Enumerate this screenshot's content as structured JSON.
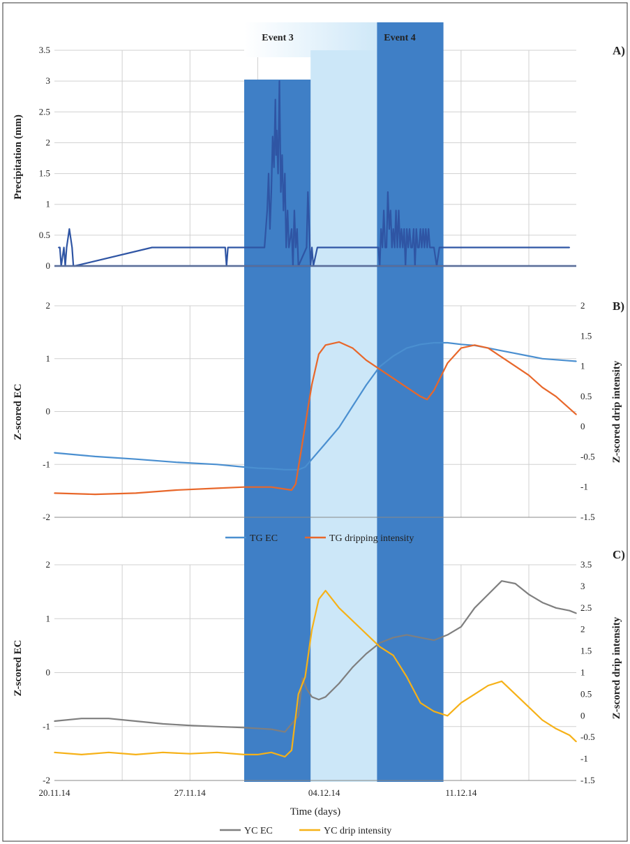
{
  "chart_data": [
    {
      "panel_label": "A)",
      "type": "bar",
      "xlabel": "",
      "ylabel": "Precipitation (mm)",
      "ylim": [
        0,
        3.5
      ],
      "yticks": [
        "0",
        "0.5",
        "1",
        "1.5",
        "2",
        "2.5",
        "3",
        "3.5"
      ],
      "grid": true,
      "events": [
        "Event 3",
        "Event 4"
      ],
      "series": [
        {
          "color": "#2f55a4",
          "x_days": [
            0.3,
            0.4,
            0.5,
            0.7,
            0.8,
            0.9,
            1.1,
            1.3,
            1.4,
            1.5,
            7.2,
            7.3,
            7.4,
            7.5,
            12.6,
            12.7,
            12.8,
            12.9,
            14.6,
            15.5,
            15.7,
            15.8,
            15.9,
            16.0,
            16.1,
            16.2,
            16.3,
            16.35,
            16.4,
            16.5,
            16.6,
            16.7,
            16.8,
            16.9,
            17.0,
            17.1,
            17.2,
            17.3,
            17.5,
            17.6,
            17.7,
            17.8,
            17.9,
            18.0,
            18.6,
            18.7,
            18.8,
            18.9,
            19.0,
            19.1,
            19.4,
            23.9,
            24.0,
            24.1,
            24.2,
            24.3,
            24.4,
            24.5,
            24.6,
            24.7,
            24.8,
            24.9,
            25.0,
            25.1,
            25.2,
            25.3,
            25.4,
            25.5,
            25.6,
            25.7,
            25.8,
            25.9,
            26.0,
            26.1,
            26.2,
            26.3,
            26.4,
            26.5,
            26.6,
            26.7,
            26.8,
            26.9,
            27.0,
            27.1,
            27.2,
            27.3,
            27.4,
            27.5,
            27.6,
            27.7,
            27.8,
            28.0,
            28.2,
            28.4,
            38.0
          ],
          "values": [
            0.3,
            0.3,
            0.0,
            0.3,
            0.0,
            0.3,
            0.6,
            0.3,
            0.0,
            0.0,
            0.3,
            0.3,
            0.3,
            0.3,
            0.3,
            0.0,
            0.3,
            0.3,
            0.3,
            0.3,
            0.9,
            1.5,
            0.6,
            1.2,
            2.1,
            1.6,
            2.7,
            1.8,
            2.2,
            1.5,
            3.0,
            1.2,
            1.8,
            0.9,
            1.5,
            0.3,
            0.9,
            0.3,
            0.6,
            0.0,
            0.9,
            0.3,
            0.6,
            0.0,
            0.3,
            1.2,
            0.6,
            0.0,
            0.3,
            0.0,
            0.3,
            0.3,
            0.0,
            0.6,
            0.3,
            0.9,
            0.3,
            0.3,
            1.2,
            0.6,
            0.9,
            0.3,
            0.6,
            0.3,
            0.9,
            0.3,
            0.9,
            0.3,
            0.6,
            0.3,
            0.6,
            0.0,
            0.6,
            0.3,
            0.6,
            0.3,
            0.3,
            0.6,
            0.0,
            0.6,
            0.3,
            0.3,
            0.6,
            0.3,
            0.6,
            0.3,
            0.6,
            0.3,
            0.6,
            0.3,
            0.3,
            0.3,
            0.0,
            0.3,
            0.3
          ]
        }
      ]
    },
    {
      "panel_label": "B)",
      "type": "line",
      "ylabel": "Z-scored EC",
      "ylabel_right": "Z-scored drip intensity",
      "ylim": [
        -2,
        2
      ],
      "ylim_right": [
        -1.5,
        2
      ],
      "yticks": [
        "-2",
        "-1",
        "0",
        "1",
        "2"
      ],
      "yticks_right": [
        "-1.5",
        "-1",
        "-0.5",
        "0",
        "0.5",
        "1",
        "1.5",
        "2"
      ],
      "grid": true,
      "legend": "bottom",
      "series": [
        {
          "name": "TG EC",
          "color": "#4a8fd0",
          "axis": "left",
          "x_days": [
            0,
            3,
            6,
            9,
            12,
            14,
            15,
            16,
            17,
            18,
            18.5,
            19,
            20,
            21,
            22,
            23,
            24,
            25,
            26,
            27,
            28,
            29,
            30,
            31,
            32,
            33,
            34,
            35,
            36,
            37,
            38,
            38.5
          ],
          "values": [
            -0.78,
            -0.85,
            -0.9,
            -0.96,
            -1.0,
            -1.05,
            -1.07,
            -1.08,
            -1.1,
            -1.1,
            -1.05,
            -0.9,
            -0.6,
            -0.3,
            0.1,
            0.5,
            0.85,
            1.05,
            1.2,
            1.27,
            1.3,
            1.3,
            1.27,
            1.25,
            1.2,
            1.15,
            1.1,
            1.05,
            1.0,
            0.98,
            0.96,
            0.95
          ]
        },
        {
          "name": "TG dripping intensity",
          "color": "#e8672a",
          "axis": "right",
          "x_days": [
            0,
            3,
            6,
            9,
            12,
            14,
            16,
            17.5,
            17.8,
            18.2,
            18.7,
            19.0,
            19.5,
            20,
            21,
            22,
            23,
            24,
            25,
            26,
            27,
            27.5,
            28,
            29,
            30,
            31,
            32,
            33,
            34,
            35,
            36,
            37,
            38,
            38.5
          ],
          "values": [
            -1.1,
            -1.12,
            -1.1,
            -1.05,
            -1.02,
            -1.0,
            -1.0,
            -1.05,
            -0.95,
            -0.4,
            0.3,
            0.7,
            1.2,
            1.35,
            1.4,
            1.3,
            1.1,
            0.95,
            0.8,
            0.65,
            0.5,
            0.45,
            0.6,
            1.05,
            1.3,
            1.35,
            1.3,
            1.15,
            1.0,
            0.85,
            0.65,
            0.5,
            0.3,
            0.2
          ]
        }
      ]
    },
    {
      "panel_label": "C)",
      "type": "line",
      "xlabel": "Time (days)",
      "ylabel": "Z-scored EC",
      "ylabel_right": "Z-scored drip intensity",
      "ylim": [
        -2,
        2
      ],
      "ylim_right": [
        -1.5,
        3.5
      ],
      "yticks": [
        "-2",
        "-1",
        "0",
        "1",
        "2"
      ],
      "yticks_right": [
        "-1.5",
        "-1",
        "-0.5",
        "0",
        "0.5",
        "1",
        "1.5",
        "2",
        "2.5",
        "3",
        "3.5"
      ],
      "x_ticks": [
        "20.11.14",
        "27.11.14",
        "04.12.14",
        "11.12.14"
      ],
      "x_tick_days": [
        0,
        10,
        19.9,
        30
      ],
      "grid": true,
      "legend": "bottom",
      "series": [
        {
          "name": "YC EC",
          "color": "#7f7f7f",
          "axis": "left",
          "x_days": [
            0,
            2,
            4,
            6,
            8,
            10,
            12,
            14,
            16,
            17,
            18,
            18.3,
            18.6,
            19,
            19.5,
            20,
            21,
            22,
            23,
            24,
            25,
            26,
            27,
            28,
            29,
            30,
            31,
            32,
            33,
            34,
            35,
            36,
            37,
            38,
            38.5
          ],
          "values": [
            -0.9,
            -0.85,
            -0.85,
            -0.9,
            -0.95,
            -0.98,
            -1.0,
            -1.02,
            -1.05,
            -1.1,
            -0.8,
            -0.1,
            -0.3,
            -0.45,
            -0.5,
            -0.45,
            -0.2,
            0.1,
            0.35,
            0.55,
            0.65,
            0.7,
            0.65,
            0.6,
            0.7,
            0.85,
            1.2,
            1.45,
            1.7,
            1.65,
            1.45,
            1.3,
            1.2,
            1.15,
            1.1
          ]
        },
        {
          "name": "YC drip intensity",
          "color": "#f6b117",
          "axis": "right",
          "x_days": [
            0,
            2,
            4,
            6,
            8,
            10,
            12,
            14,
            15,
            16,
            17,
            17.5,
            18,
            18.5,
            19,
            19.5,
            20,
            21,
            22,
            23,
            24,
            25,
            26,
            27,
            28,
            29,
            30,
            31,
            32,
            33,
            34,
            35,
            36,
            37,
            38,
            38.5
          ],
          "values": [
            -0.85,
            -0.9,
            -0.85,
            -0.9,
            -0.85,
            -0.88,
            -0.85,
            -0.9,
            -0.9,
            -0.85,
            -0.95,
            -0.8,
            0.5,
            0.9,
            2.0,
            2.7,
            2.9,
            2.5,
            2.2,
            1.9,
            1.6,
            1.4,
            0.9,
            0.3,
            0.1,
            0.0,
            0.3,
            0.5,
            0.7,
            0.8,
            0.5,
            0.2,
            -0.1,
            -0.3,
            -0.45,
            -0.6
          ]
        }
      ]
    }
  ]
}
